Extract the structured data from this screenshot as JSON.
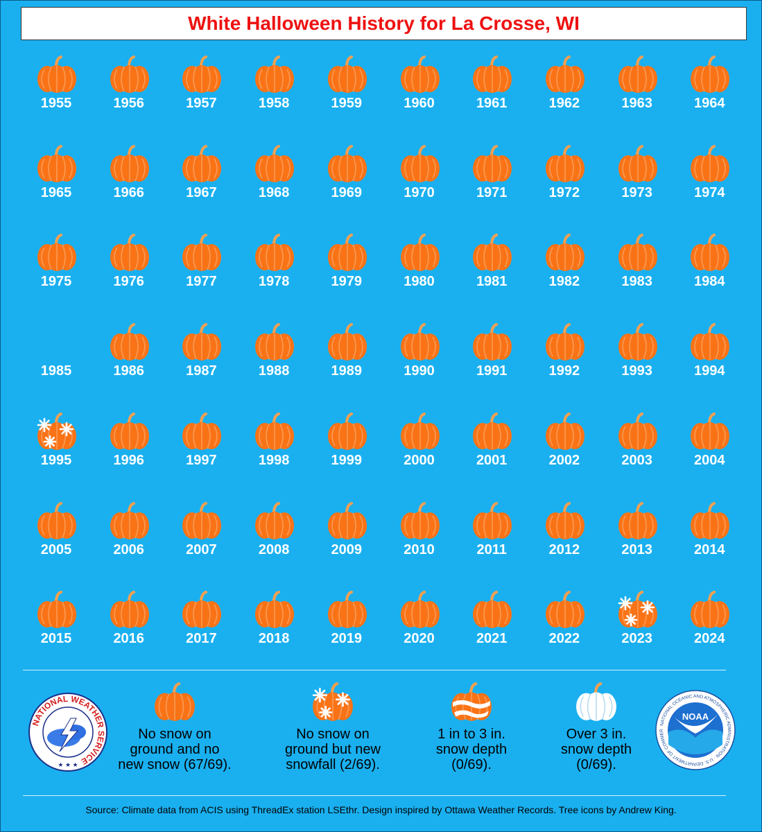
{
  "title": "White Halloween History for La Crosse, WI",
  "colors": {
    "background": "#1ab0f0",
    "pumpkin": "#f97316",
    "pumpkin_light": "#fb9a55",
    "stem": "#f5a050",
    "snow": "#ffffff",
    "title_text": "#ee1111"
  },
  "chart_data": {
    "type": "table",
    "categories_legend": [
      "no_snow",
      "new_snowfall",
      "depth_1_3",
      "depth_over_3"
    ],
    "cells": [
      {
        "year": "1955",
        "category": "no_snow"
      },
      {
        "year": "1956",
        "category": "no_snow"
      },
      {
        "year": "1957",
        "category": "no_snow"
      },
      {
        "year": "1958",
        "category": "no_snow"
      },
      {
        "year": "1959",
        "category": "no_snow"
      },
      {
        "year": "1960",
        "category": "no_snow"
      },
      {
        "year": "1961",
        "category": "no_snow"
      },
      {
        "year": "1962",
        "category": "no_snow"
      },
      {
        "year": "1963",
        "category": "no_snow"
      },
      {
        "year": "1964",
        "category": "no_snow"
      },
      {
        "year": "1965",
        "category": "no_snow"
      },
      {
        "year": "1966",
        "category": "no_snow"
      },
      {
        "year": "1967",
        "category": "no_snow"
      },
      {
        "year": "1968",
        "category": "no_snow"
      },
      {
        "year": "1969",
        "category": "no_snow"
      },
      {
        "year": "1970",
        "category": "no_snow"
      },
      {
        "year": "1971",
        "category": "no_snow"
      },
      {
        "year": "1972",
        "category": "no_snow"
      },
      {
        "year": "1973",
        "category": "no_snow"
      },
      {
        "year": "1974",
        "category": "no_snow"
      },
      {
        "year": "1975",
        "category": "no_snow"
      },
      {
        "year": "1976",
        "category": "no_snow"
      },
      {
        "year": "1977",
        "category": "no_snow"
      },
      {
        "year": "1978",
        "category": "no_snow"
      },
      {
        "year": "1979",
        "category": "no_snow"
      },
      {
        "year": "1980",
        "category": "no_snow"
      },
      {
        "year": "1981",
        "category": "no_snow"
      },
      {
        "year": "1982",
        "category": "no_snow"
      },
      {
        "year": "1983",
        "category": "no_snow"
      },
      {
        "year": "1984",
        "category": "no_snow"
      },
      {
        "year": "1985",
        "category": "missing"
      },
      {
        "year": "1986",
        "category": "no_snow"
      },
      {
        "year": "1987",
        "category": "no_snow"
      },
      {
        "year": "1988",
        "category": "no_snow"
      },
      {
        "year": "1989",
        "category": "no_snow"
      },
      {
        "year": "1990",
        "category": "no_snow"
      },
      {
        "year": "1991",
        "category": "no_snow"
      },
      {
        "year": "1992",
        "category": "no_snow"
      },
      {
        "year": "1993",
        "category": "no_snow"
      },
      {
        "year": "1994",
        "category": "no_snow"
      },
      {
        "year": "1995",
        "category": "new_snowfall"
      },
      {
        "year": "1996",
        "category": "no_snow"
      },
      {
        "year": "1997",
        "category": "no_snow"
      },
      {
        "year": "1998",
        "category": "no_snow"
      },
      {
        "year": "1999",
        "category": "no_snow"
      },
      {
        "year": "2000",
        "category": "no_snow"
      },
      {
        "year": "2001",
        "category": "no_snow"
      },
      {
        "year": "2002",
        "category": "no_snow"
      },
      {
        "year": "2003",
        "category": "no_snow"
      },
      {
        "year": "2004",
        "category": "no_snow"
      },
      {
        "year": "2005",
        "category": "no_snow"
      },
      {
        "year": "2006",
        "category": "no_snow"
      },
      {
        "year": "2007",
        "category": "no_snow"
      },
      {
        "year": "2008",
        "category": "no_snow"
      },
      {
        "year": "2009",
        "category": "no_snow"
      },
      {
        "year": "2010",
        "category": "no_snow"
      },
      {
        "year": "2011",
        "category": "no_snow"
      },
      {
        "year": "2012",
        "category": "no_snow"
      },
      {
        "year": "2013",
        "category": "no_snow"
      },
      {
        "year": "2014",
        "category": "no_snow"
      },
      {
        "year": "2015",
        "category": "no_snow"
      },
      {
        "year": "2016",
        "category": "no_snow"
      },
      {
        "year": "2017",
        "category": "no_snow"
      },
      {
        "year": "2018",
        "category": "no_snow"
      },
      {
        "year": "2019",
        "category": "no_snow"
      },
      {
        "year": "2020",
        "category": "no_snow"
      },
      {
        "year": "2021",
        "category": "no_snow"
      },
      {
        "year": "2022",
        "category": "no_snow"
      },
      {
        "year": "2023",
        "category": "new_snowfall"
      },
      {
        "year": "2024",
        "category": "no_snow"
      }
    ]
  },
  "legend": [
    {
      "key": "no_snow",
      "text": "No snow on ground and no new snow (67/69)."
    },
    {
      "key": "new_snowfall",
      "text": "No snow on ground but new snowfall (2/69)."
    },
    {
      "key": "depth_1_3",
      "text": "1 in to 3 in. snow depth (0/69)."
    },
    {
      "key": "depth_over_3",
      "text": "Over 3 in. snow depth (0/69)."
    }
  ],
  "legend_lines": [
    [
      "No snow on",
      "ground and no",
      "new snow (67/69)."
    ],
    [
      "No snow on",
      "ground but new",
      "snowfall (2/69)."
    ],
    [
      "1 in to 3 in.",
      "snow depth",
      "(0/69)."
    ],
    [
      "Over 3 in.",
      "snow depth",
      "(0/69)."
    ]
  ],
  "logos": {
    "nws_text": "NATIONAL WEATHER SERVICE",
    "noaa_center": "NOAA",
    "noaa_ring": "NATIONAL OCEANIC AND ATMOSPHERIC ADMINISTRATION · U.S. DEPARTMENT OF COMMERCE"
  },
  "source": "Source: Climate data from ACIS using ThreadEx station LSEthr. Design inspired by Ottawa Weather Records. Tree icons by Andrew King."
}
